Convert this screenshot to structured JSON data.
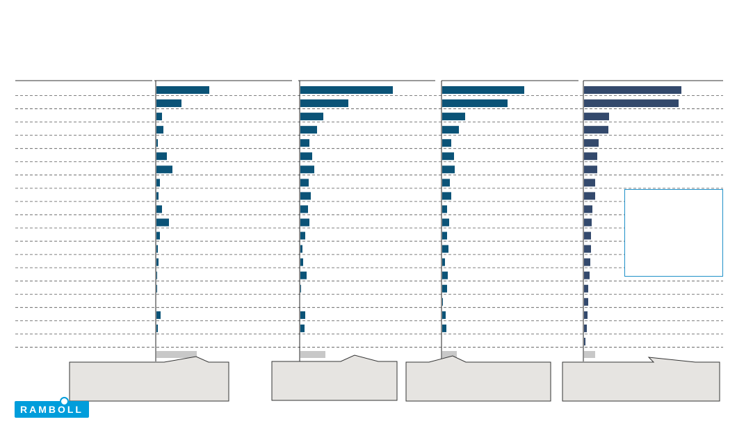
{
  "brand": {
    "logo_text": "RAMBOLL",
    "logo_color": "#009DDB"
  },
  "colors": {
    "bar_teal": "#0B5377",
    "bar_navy": "#33496C",
    "reference_gray": "#C8C8C8",
    "callout_fill": "#E6E4E1",
    "info_box_border": "#1E90C8"
  },
  "chart_data": [
    {
      "type": "bar",
      "orientation": "horizontal",
      "color": "#0B5377",
      "values": [
        38,
        18,
        4,
        5,
        1,
        7.5,
        11.5,
        2.5,
        1.5,
        4,
        9,
        2.5,
        1,
        1.5,
        0.5,
        0.5,
        0,
        3,
        1,
        0
      ],
      "reference_value": 29,
      "xlim": [
        0,
        100
      ]
    },
    {
      "type": "bar",
      "orientation": "horizontal",
      "color": "#0B5377",
      "values": [
        66.5,
        34.5,
        16.5,
        12,
        6.5,
        8.5,
        10,
        6,
        7.5,
        5.5,
        6.5,
        3.5,
        1.5,
        2,
        4.5,
        0.5,
        0,
        3.5,
        3,
        0
      ],
      "reference_value": 18,
      "xlim": [
        0,
        100
      ]
    },
    {
      "type": "bar",
      "orientation": "horizontal",
      "color": "#0B5377",
      "values": [
        59,
        47,
        16.5,
        12,
        6.5,
        8.5,
        9,
        5.5,
        6.5,
        3.5,
        5,
        3.5,
        4.5,
        2,
        4,
        3.5,
        0.5,
        2.5,
        3,
        0
      ],
      "reference_value": 10.5,
      "xlim": [
        0,
        100
      ]
    },
    {
      "type": "bar",
      "orientation": "horizontal",
      "color": "#33496C",
      "values": [
        70,
        68,
        18,
        17.5,
        10.5,
        9.5,
        9.5,
        8,
        8,
        6,
        5.5,
        5,
        5,
        4.5,
        4,
        3,
        3,
        2.5,
        2,
        1
      ],
      "reference_value": 8,
      "xlim": [
        0,
        100
      ]
    }
  ]
}
